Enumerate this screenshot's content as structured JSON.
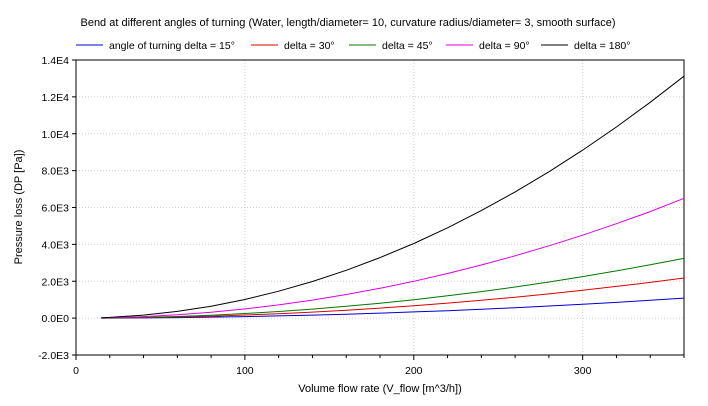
{
  "chart_data": {
    "type": "line",
    "title": "Bend at different angles of turning (Water, length/diameter= 10, curvature radius/diameter= 3, smooth surface)",
    "xlabel": "Volume flow rate (V_flow [m^3/h])",
    "ylabel": "Pressure loss (DP [Pa])",
    "xlim": [
      0,
      360
    ],
    "ylim": [
      -2000,
      14000
    ],
    "x_ticks": [
      0,
      100,
      200,
      300
    ],
    "x_tick_labels": [
      "0",
      "100",
      "200",
      "300"
    ],
    "y_ticks": [
      -2000,
      0,
      2000,
      4000,
      6000,
      8000,
      10000,
      12000,
      14000
    ],
    "y_tick_labels": [
      "-2.0E3",
      "0.0E0",
      "2.0E3",
      "4.0E3",
      "6.0E3",
      "8.0E3",
      "1.0E4",
      "1.2E4",
      "1.4E4"
    ],
    "grid": true,
    "legend_position": "top",
    "x": [
      0,
      20,
      40,
      60,
      80,
      100,
      120,
      140,
      160,
      180,
      200,
      220,
      240,
      260,
      280,
      300,
      320,
      340,
      360
    ],
    "series": [
      {
        "name": "angle of turning delta = 15°",
        "color": "#0000cc",
        "values": [
          0,
          3,
          13,
          30,
          55,
          85,
          122,
          165,
          215,
          272,
          335,
          405,
          482,
          565,
          655,
          752,
          855,
          965,
          1085
        ]
      },
      {
        "name": "delta = 30°",
        "color": "#dd0000",
        "values": [
          0,
          7,
          27,
          60,
          107,
          168,
          242,
          329,
          430,
          544,
          672,
          813,
          967,
          1135,
          1316,
          1511,
          1719,
          1940,
          2175
        ]
      },
      {
        "name": "delta = 45°",
        "color": "#007700",
        "values": [
          0,
          10,
          40,
          90,
          160,
          250,
          360,
          490,
          640,
          810,
          1000,
          1210,
          1440,
          1690,
          1960,
          2250,
          2560,
          2890,
          3240
        ]
      },
      {
        "name": "delta = 90°",
        "color": "#dd00dd",
        "values": [
          0,
          20,
          80,
          180,
          320,
          500,
          720,
          980,
          1280,
          1620,
          2000,
          2420,
          2880,
          3380,
          3920,
          4500,
          5120,
          5780,
          6500
        ]
      },
      {
        "name": "delta = 180°",
        "color": "#000000",
        "values": [
          0,
          40,
          162,
          364,
          648,
          1012,
          1458,
          1984,
          2592,
          3280,
          4050,
          4900,
          5832,
          6844,
          7938,
          9112,
          10368,
          11704,
          13120
        ]
      }
    ]
  }
}
